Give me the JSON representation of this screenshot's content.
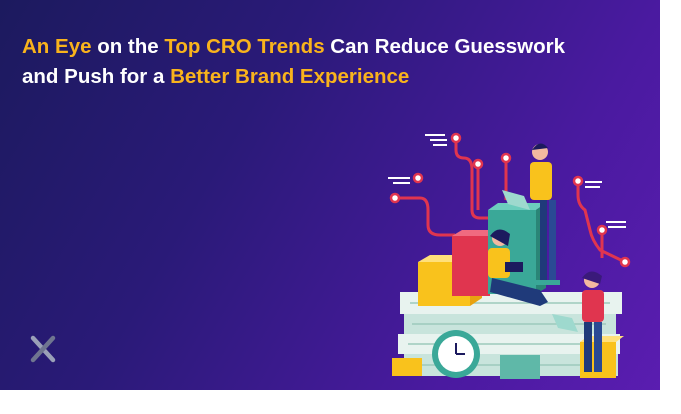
{
  "banner": {
    "title": {
      "lines": [
        [
          {
            "text": "An Eye",
            "highlight": true
          },
          {
            "text": " on the ",
            "highlight": false
          },
          {
            "text": "Top CRO Trends",
            "highlight": true
          },
          {
            "text": " Can Reduce Guesswork",
            "highlight": false
          }
        ],
        [
          {
            "text": "and Push for a ",
            "highlight": false
          },
          {
            "text": "Better Brand Experience",
            "highlight": true
          }
        ]
      ]
    }
  }
}
